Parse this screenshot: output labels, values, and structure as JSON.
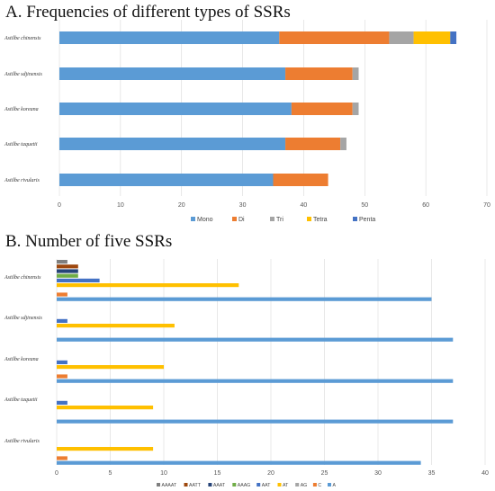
{
  "chart_data": [
    {
      "type": "bar",
      "orientation": "horizontal",
      "stacked": true,
      "title": "A.   Frequencies of different types of SSRs",
      "categories": [
        "Astilbe chinensis",
        "Astilbe sdjinensis",
        "Astilbe koreana",
        "Astilbe taquetii",
        "Astilbe rivularis"
      ],
      "series": [
        {
          "name": "Mono",
          "color": "#5b9bd5",
          "values": [
            36,
            37,
            38,
            37,
            35
          ]
        },
        {
          "name": "Di",
          "color": "#ed7d31",
          "values": [
            18,
            11,
            10,
            9,
            9
          ]
        },
        {
          "name": "Tri",
          "color": "#a5a5a5",
          "values": [
            4,
            1,
            1,
            1,
            0
          ]
        },
        {
          "name": "Tetra",
          "color": "#ffc000",
          "values": [
            6,
            0,
            0,
            0,
            0
          ]
        },
        {
          "name": "Penta",
          "color": "#4472c4",
          "values": [
            1,
            0,
            0,
            0,
            0
          ]
        }
      ],
      "xlim": [
        0,
        70
      ],
      "xticks": [
        "0",
        "10",
        "20",
        "30",
        "40",
        "50",
        "60",
        "70"
      ],
      "grid": true,
      "legend_position": "bottom"
    },
    {
      "type": "bar",
      "orientation": "horizontal",
      "stacked": false,
      "title": "B. Number of five SSRs",
      "categories": [
        "Astilbe chinensis",
        "Astilbe sdjinensis",
        "Astilbe koreana",
        "Astilbe taquetii",
        "Astilbe rivularis"
      ],
      "series": [
        {
          "name": "AAAAT",
          "color": "#7f7f7f",
          "values": [
            1,
            0,
            0,
            0,
            0
          ]
        },
        {
          "name": "AATT",
          "color": "#9e480e",
          "values": [
            2,
            0,
            0,
            0,
            0
          ]
        },
        {
          "name": "AAAT",
          "color": "#264478",
          "values": [
            2,
            0,
            0,
            0,
            0
          ]
        },
        {
          "name": "AAAG",
          "color": "#70ad47",
          "values": [
            2,
            0,
            0,
            0,
            0
          ]
        },
        {
          "name": "AAT",
          "color": "#4472c4",
          "values": [
            4,
            1,
            1,
            1,
            0
          ]
        },
        {
          "name": "AT",
          "color": "#ffc000",
          "values": [
            17,
            11,
            10,
            9,
            9
          ]
        },
        {
          "name": "AG",
          "color": "#a5a5a5",
          "values": [
            0,
            0,
            0,
            0,
            0
          ]
        },
        {
          "name": "C",
          "color": "#ed7d31",
          "values": [
            1,
            0,
            1,
            0,
            1
          ]
        },
        {
          "name": "A",
          "color": "#5b9bd5",
          "values": [
            35,
            37,
            37,
            37,
            34
          ]
        }
      ],
      "xlim": [
        0,
        40
      ],
      "xticks": [
        "0",
        "5",
        "10",
        "15",
        "20",
        "25",
        "30",
        "35",
        "40"
      ],
      "grid": true,
      "legend_position": "bottom"
    }
  ]
}
